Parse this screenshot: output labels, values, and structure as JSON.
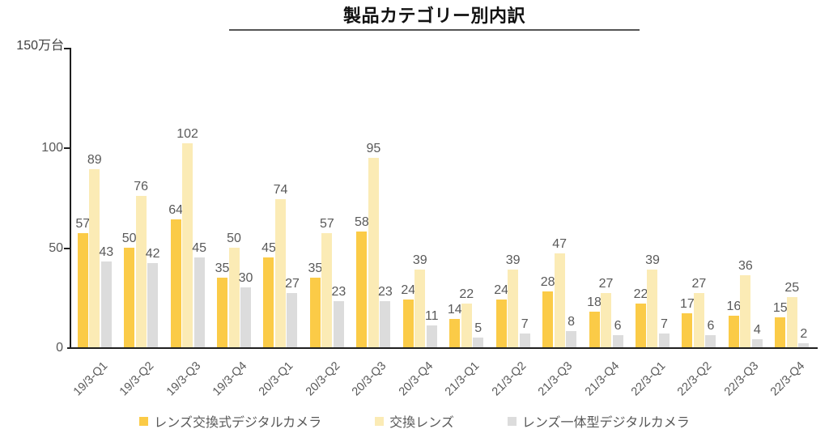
{
  "chart_data": {
    "type": "bar",
    "title": "製品カテゴリー別内訳",
    "ylabel": "150万台",
    "xlabel": "",
    "categories": [
      "19/3-Q1",
      "19/3-Q2",
      "19/3-Q3",
      "19/3-Q4",
      "20/3-Q1",
      "20/3-Q2",
      "20/3-Q3",
      "20/3-Q4",
      "21/3-Q1",
      "21/3-Q2",
      "21/3-Q3",
      "21/3-Q4",
      "22/3-Q1",
      "22/3-Q2",
      "22/3-Q3",
      "22/3-Q4"
    ],
    "series": [
      {
        "name": "レンズ交換式デジタルカメラ",
        "color": "#FBCB47",
        "values": [
          57,
          50,
          64,
          35,
          45,
          35,
          58,
          24,
          14,
          24,
          28,
          18,
          22,
          17,
          16,
          15
        ]
      },
      {
        "name": "交換レンズ",
        "color": "#FBEBB5",
        "values": [
          89,
          76,
          102,
          50,
          74,
          57,
          95,
          39,
          22,
          39,
          47,
          27,
          39,
          27,
          36,
          25
        ]
      },
      {
        "name": "レンズ一体型デジタルカメラ",
        "color": "#DCDCDC",
        "values": [
          43,
          42,
          45,
          30,
          27,
          23,
          23,
          11,
          5,
          7,
          8,
          6,
          7,
          6,
          4,
          2
        ]
      }
    ],
    "ylim": [
      0,
      150
    ],
    "ytick_values": [
      0,
      50,
      100
    ],
    "ytick_mark_values": [
      50,
      100,
      150
    ],
    "data_labels": true,
    "grid": false,
    "legend_position": "bottom",
    "colors": {
      "axis": "#1f1f1f",
      "tick_label": "#595959",
      "value_label": "#595959",
      "title": "#111111",
      "title_underline": "#555555",
      "unit_label": "#404040",
      "background": "#ffffff"
    }
  }
}
